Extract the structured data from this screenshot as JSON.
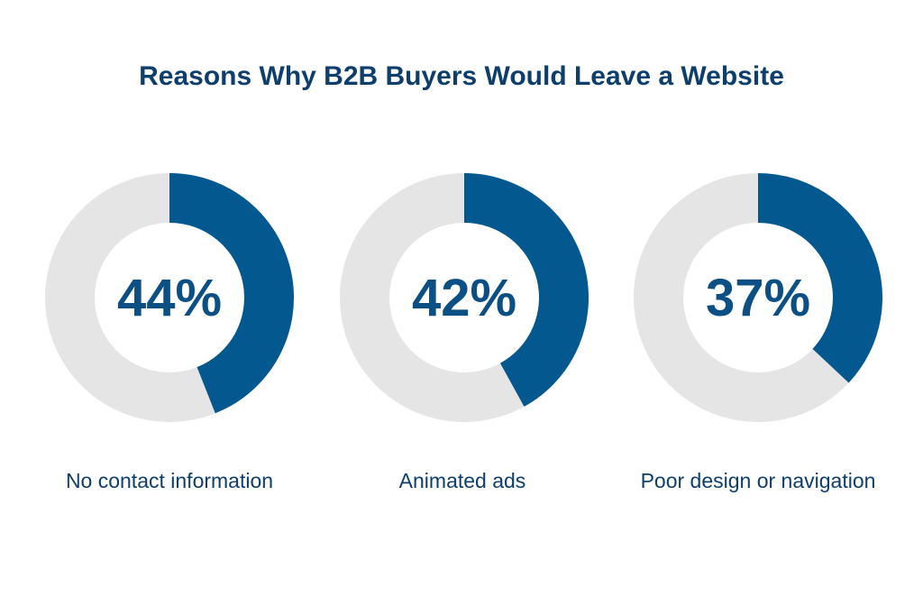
{
  "chart_data": {
    "type": "pie",
    "subtype": "donut",
    "title": "Reasons Why B2B Buyers Would Leave a Website",
    "categories": [
      "No contact information",
      "Animated ads",
      "Poor design or navigation"
    ],
    "values": [
      44,
      42,
      37
    ],
    "value_labels": [
      "44%",
      "42%",
      "37%"
    ],
    "unit": "%",
    "max": 100,
    "colors": {
      "filled": "#02588f",
      "remainder": "#e5e5e5",
      "text": "#0b4f85",
      "title": "#0e3f6c"
    }
  }
}
